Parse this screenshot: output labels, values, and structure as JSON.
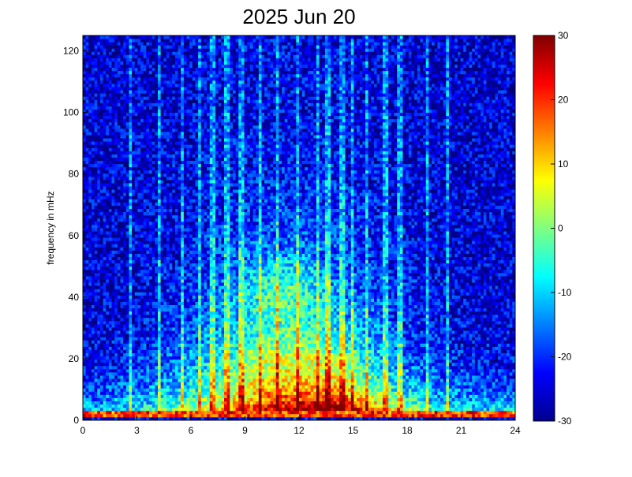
{
  "chart_data": {
    "type": "heatmap",
    "title": "2025 Jun 20",
    "xlabel": "",
    "ylabel": "frequency in mHz",
    "xlim": [
      0,
      24
    ],
    "ylim": [
      0,
      125
    ],
    "x_ticks": [
      "0",
      "3",
      "6",
      "9",
      "12",
      "15",
      "18",
      "21",
      "24"
    ],
    "y_ticks": [
      "0",
      "20",
      "40",
      "60",
      "80",
      "100",
      "120"
    ],
    "colorbar": {
      "range": [
        -30,
        30
      ],
      "ticks": [
        "30",
        "20",
        "10",
        "0",
        "-10",
        "-20",
        "-30"
      ],
      "colormap": "jet"
    },
    "grid": false,
    "cells": {
      "nx": 150,
      "ny": 120
    },
    "features": [
      {
        "name": "low-frequency band",
        "x": [
          0,
          24
        ],
        "y": [
          0,
          15
        ],
        "value": 15
      },
      {
        "name": "afternoon burst",
        "x": [
          12,
          17
        ],
        "y": [
          0,
          15
        ],
        "value": 28
      },
      {
        "name": "mid-day enhancement",
        "x": [
          9,
          13
        ],
        "y": [
          35,
          52
        ],
        "value": 10
      },
      {
        "name": "broad daytime rise",
        "x": [
          6,
          17
        ],
        "y": [
          15,
          60
        ],
        "value": 0
      },
      {
        "name": "night background",
        "x": [
          0,
          24
        ],
        "y": [
          60,
          125
        ],
        "value": -25
      }
    ],
    "vertical_streaks": [
      2.7,
      4.2,
      5.5,
      6.5,
      7.2,
      8.0,
      8.8,
      9.9,
      10.8,
      11.9,
      13.1,
      13.6,
      14.4,
      15.0,
      15.7,
      16.8,
      17.6,
      19.1,
      20.3
    ]
  }
}
